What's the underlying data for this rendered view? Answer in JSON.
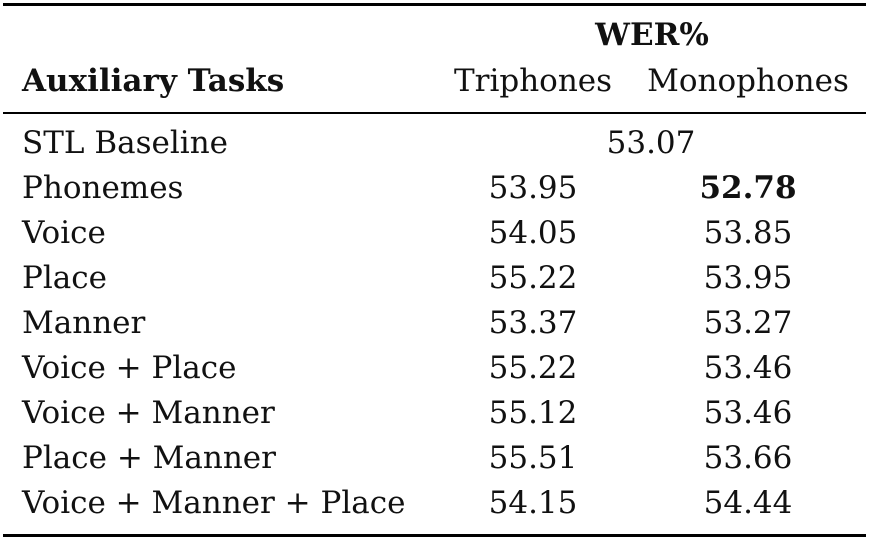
{
  "table": {
    "header": {
      "group_label": "WER%",
      "row_header": "Auxiliary Tasks",
      "col_triphones": "Triphones",
      "col_monophones": "Monophones"
    },
    "baseline": {
      "label": "STL Baseline",
      "value": "53.07"
    },
    "rows": [
      {
        "label": "Phonemes",
        "triphones": "53.95",
        "monophones": "52.78"
      },
      {
        "label": "Voice",
        "triphones": "54.05",
        "monophones": "53.85"
      },
      {
        "label": "Place",
        "triphones": "55.22",
        "monophones": "53.95"
      },
      {
        "label": "Manner",
        "triphones": "53.37",
        "monophones": "53.27"
      },
      {
        "label": "Voice + Place",
        "triphones": "55.22",
        "monophones": "53.46"
      },
      {
        "label": "Voice + Manner",
        "triphones": "55.12",
        "monophones": "53.46"
      },
      {
        "label": "Place + Manner",
        "triphones": "55.51",
        "monophones": "53.66"
      },
      {
        "label": "Voice + Manner + Place",
        "triphones": "54.15",
        "monophones": "54.44"
      }
    ]
  }
}
